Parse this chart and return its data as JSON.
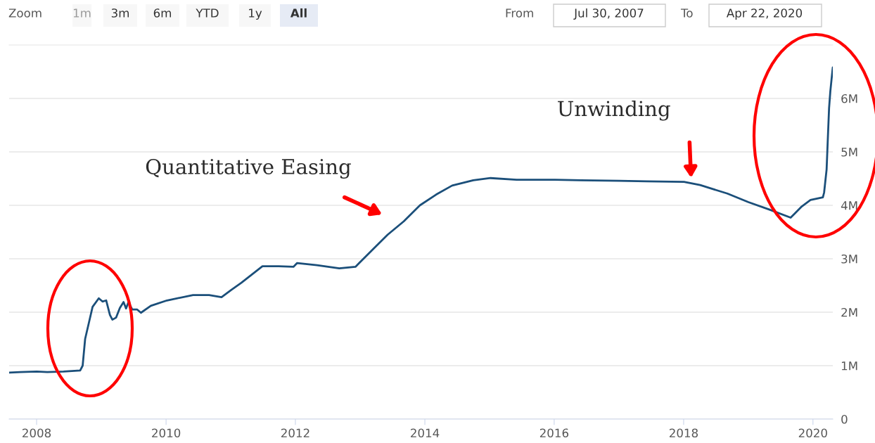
{
  "chart_data": {
    "type": "line",
    "x": [
      "2007-07-30",
      "2007-10-01",
      "2008-01-02",
      "2008-03-01",
      "2008-06-01",
      "2008-09-03",
      "2008-09-17",
      "2008-10-01",
      "2008-10-22",
      "2008-11-12",
      "2008-12-17",
      "2009-01-07",
      "2009-01-28",
      "2009-02-18",
      "2009-03-04",
      "2009-03-25",
      "2009-04-15",
      "2009-05-06",
      "2009-05-20",
      "2009-06-03",
      "2009-06-24",
      "2009-07-22",
      "2009-08-12",
      "2009-10-07",
      "2010-01-06",
      "2010-06-02",
      "2010-09-01",
      "2010-11-10",
      "2011-01-05",
      "2011-03-02",
      "2011-06-29",
      "2011-09-28",
      "2011-12-21",
      "2012-01-11",
      "2012-05-02",
      "2012-09-05",
      "2012-12-05",
      "2013-03-06",
      "2013-06-05",
      "2013-09-04",
      "2013-12-04",
      "2014-03-05",
      "2014-06-04",
      "2014-10-01",
      "2015-01-07",
      "2015-06-03",
      "2016-01-06",
      "2016-06-01",
      "2017-01-04",
      "2017-06-07",
      "2018-01-03",
      "2018-04-04",
      "2018-09-05",
      "2019-01-02",
      "2019-05-01",
      "2019-08-28",
      "2019-09-18",
      "2019-10-30",
      "2019-12-18",
      "2020-02-26",
      "2020-03-04",
      "2020-03-18",
      "2020-03-25",
      "2020-04-01",
      "2020-04-08",
      "2020-04-15",
      "2020-04-22"
    ],
    "series": [
      {
        "color": "#1b4f7a",
        "values": [
          0.87,
          0.88,
          0.89,
          0.88,
          0.89,
          0.91,
          1.0,
          1.5,
          1.8,
          2.1,
          2.26,
          2.2,
          2.22,
          1.95,
          1.86,
          1.9,
          2.08,
          2.19,
          2.07,
          2.19,
          2.05,
          2.05,
          1.99,
          2.12,
          2.22,
          2.32,
          2.32,
          2.28,
          2.42,
          2.55,
          2.86,
          2.86,
          2.85,
          2.92,
          2.88,
          2.82,
          2.85,
          3.15,
          3.45,
          3.7,
          4.0,
          4.2,
          4.37,
          4.47,
          4.51,
          4.48,
          4.48,
          4.47,
          4.46,
          4.45,
          4.44,
          4.38,
          4.22,
          4.06,
          3.92,
          3.77,
          3.84,
          3.98,
          4.1,
          4.15,
          4.24,
          4.67,
          5.25,
          5.82,
          6.13,
          6.36,
          6.58
        ]
      }
    ],
    "xlim": [
      "2007-07-30",
      "2020-04-22"
    ],
    "xticks": [
      {
        "value": "2008",
        "label": "2008"
      },
      {
        "value": "2010",
        "label": "2010"
      },
      {
        "value": "2012",
        "label": "2012"
      },
      {
        "value": "2014",
        "label": "2014"
      },
      {
        "value": "2016",
        "label": "2016"
      },
      {
        "value": "2018",
        "label": "2018"
      },
      {
        "value": "2020",
        "label": "2020"
      }
    ],
    "ylim": [
      0,
      7
    ],
    "yticks": [
      0,
      {
        "value": 1,
        "label": "1M"
      },
      {
        "value": 2,
        "label": "2M"
      },
      {
        "value": 3,
        "label": "3M"
      },
      {
        "value": 4,
        "label": "4M"
      },
      {
        "value": 5,
        "label": "5M"
      },
      {
        "value": 6,
        "label": "6M"
      }
    ],
    "grid": "y",
    "marker": "none",
    "line_style": "solid",
    "annotations": [
      "Quantitative Easing",
      "Unwinding",
      "Zoom",
      "1m",
      "3m",
      "6m",
      "YTD",
      "1y",
      "All",
      "From",
      "Jul 30, 2007",
      "To",
      "Apr 22, 2020"
    ]
  }
}
